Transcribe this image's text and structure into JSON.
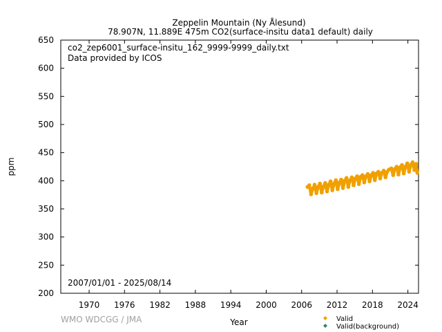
{
  "chart_data": {
    "type": "scatter",
    "title": "Zeppelin Mountain (Ny Ålesund)",
    "subtitle": "78.907N, 11.889E 475m    CO2(surface-insitu data1 default) daily",
    "annotation_file": "co2_zep6001_surface-insitu_162_9999-9999_daily.txt",
    "annotation_provider": "Data provided by ICOS",
    "date_range": "2007/01/01 - 2025/08/14",
    "xlabel": "Year",
    "ylabel": "ppm",
    "credit": "WMO WDCGG / JMA",
    "xlim": [
      1965.2,
      2025.8
    ],
    "ylim": [
      200,
      650
    ],
    "x_ticks": [
      "1970",
      "1976",
      "1982",
      "1988",
      "1994",
      "2000",
      "2006",
      "2012",
      "2018",
      "2024"
    ],
    "y_ticks": [
      "200",
      "250",
      "300",
      "350",
      "400",
      "450",
      "500",
      "550",
      "600",
      "650"
    ],
    "grid": false,
    "legend_position": "bottom-right",
    "series": [
      {
        "name": "Valid",
        "color": "#f0a000",
        "note": "daily values 2007–2025, seasonal cycle ~370–395 ppm (2007) rising to ~410–435 ppm (2025)",
        "x": [
          2007.0,
          2007.3,
          2007.6,
          2007.9,
          2008.2,
          2008.5,
          2008.8,
          2009.1,
          2009.4,
          2009.7,
          2010.0,
          2010.3,
          2010.6,
          2010.9,
          2011.2,
          2011.5,
          2011.8,
          2012.1,
          2012.4,
          2012.7,
          2013.0,
          2013.3,
          2013.6,
          2013.9,
          2014.2,
          2014.5,
          2014.8,
          2015.1,
          2015.4,
          2015.7,
          2016.0,
          2016.3,
          2016.6,
          2016.9,
          2017.2,
          2017.5,
          2017.8,
          2018.1,
          2018.4,
          2018.7,
          2019.0,
          2019.3,
          2019.6,
          2019.9,
          2020.2,
          2020.5,
          2020.8,
          2021.2,
          2021.5,
          2021.8,
          2022.1,
          2022.4,
          2022.7,
          2023.0,
          2023.3,
          2023.6,
          2023.9,
          2024.2,
          2024.5,
          2024.8,
          2025.1,
          2025.4,
          2025.6
        ],
        "y": [
          389,
          392,
          376,
          386,
          393,
          378,
          389,
          395,
          379,
          390,
          396,
          381,
          393,
          399,
          383,
          395,
          401,
          385,
          397,
          402,
          387,
          400,
          405,
          389,
          401,
          406,
          392,
          404,
          408,
          394,
          407,
          410,
          397,
          408,
          412,
          399,
          410,
          414,
          401,
          413,
          416,
          404,
          414,
          418,
          406,
          416,
          420,
          422,
          410,
          421,
          425,
          411,
          424,
          428,
          413,
          425,
          431,
          416,
          428,
          433,
          419,
          430,
          414
        ]
      },
      {
        "name": "Valid(background)",
        "color": "#2e8b57",
        "x": [],
        "y": []
      }
    ]
  }
}
